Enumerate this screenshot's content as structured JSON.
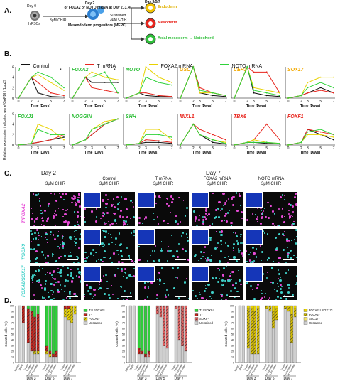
{
  "panels": {
    "A": "A.",
    "B": "B.",
    "C": "C.",
    "D": "D."
  },
  "schematic": {
    "day0": "Day 0",
    "hipsc": "hiPSCs",
    "day2": "Day 2",
    "day2_treatment": "T or FOXA2 or NOTO mRNA at Day 2, 3, 4",
    "chir": "3μM CHIR",
    "mepc": "Mesendoderm progenitors (MEPC)",
    "sustained": "Sustained",
    "sustained_chir": "3μM CHIR",
    "day357": "Day 3/5/7",
    "fates": [
      {
        "label": "Endoderm",
        "color": "#f2c300"
      },
      {
        "label": "Mesoderm",
        "color": "#e8261e"
      },
      {
        "label": "Axial mesoderm → Notochord",
        "color": "#2fbf3a"
      }
    ]
  },
  "legend": {
    "items": [
      {
        "label": "Control",
        "color": "#111111"
      },
      {
        "label": "T mRNA",
        "color": "#e8261e"
      },
      {
        "label": "FOXA2 mRNA",
        "color": "#e8d200"
      },
      {
        "label": "NOTO mRNA",
        "color": "#2fd23a"
      }
    ]
  },
  "chart_data": {
    "type": "line",
    "ylabel": "Relative expression indicated gene/GAPDH (Log2)",
    "xlabel": "Time (Days)",
    "x": [
      0,
      2,
      3,
      5,
      7
    ],
    "xticks": [
      "0",
      "2",
      "3",
      "5",
      "7"
    ],
    "ylim": [
      0,
      6
    ],
    "yticks": [
      "0",
      "2",
      "4",
      "6"
    ],
    "series_names": [
      "Control",
      "T mRNA",
      "FOXA2 mRNA",
      "NOTO mRNA"
    ],
    "genes": [
      {
        "name": "T",
        "color": "#2fbf3a",
        "star": "*",
        "values": [
          [
            0,
            4,
            1,
            0.3,
            0.2
          ],
          [
            0,
            4,
            3,
            1,
            0.5
          ],
          [
            0,
            4,
            4.5,
            3,
            1.5
          ],
          [
            0,
            4,
            5,
            4,
            2
          ]
        ]
      },
      {
        "name": "FOXA2",
        "color": "#2fbf3a",
        "star": "*",
        "values": [
          [
            0,
            4,
            3,
            3,
            3
          ],
          [
            0,
            4,
            2,
            1.5,
            1
          ],
          [
            0,
            4,
            5,
            4,
            3.5
          ],
          [
            0,
            4,
            4,
            5,
            1
          ]
        ]
      },
      {
        "name": "NOTO",
        "color": "#2fbf3a",
        "star": "*",
        "values": [
          [
            0,
            1,
            0.5,
            0.3,
            0.3
          ],
          [
            0,
            1,
            1,
            0.5,
            0.3
          ],
          [
            0,
            1,
            6,
            4,
            3
          ],
          [
            0,
            1,
            4,
            3,
            2.5
          ]
        ]
      },
      {
        "name": "GSC",
        "color": "#f2a900",
        "star": "",
        "values": [
          [
            0,
            6,
            1,
            0.5,
            0.3
          ],
          [
            0,
            6,
            2,
            1,
            0.5
          ],
          [
            0,
            6,
            1,
            1,
            0.5
          ],
          [
            0,
            6,
            1.5,
            1,
            0.5
          ]
        ]
      },
      {
        "name": "CER1",
        "color": "#f2a900",
        "star": "",
        "values": [
          [
            0,
            6,
            1,
            0.5,
            0.3
          ],
          [
            0,
            6,
            5,
            5,
            1
          ],
          [
            0,
            6,
            2,
            1.5,
            1
          ],
          [
            0,
            6,
            1.5,
            1,
            0.5
          ]
        ]
      },
      {
        "name": "SOX17",
        "color": "#f2a900",
        "star": "",
        "values": [
          [
            0,
            0.5,
            1,
            2,
            1
          ],
          [
            0,
            0.5,
            1,
            1.5,
            1
          ],
          [
            0,
            0.5,
            3,
            4,
            4
          ],
          [
            0,
            0.5,
            2,
            3,
            2
          ]
        ]
      },
      {
        "name": "FOXJ1",
        "color": "#2fbf3a",
        "star": "",
        "values": [
          [
            0,
            0.3,
            0.5,
            1,
            1.5
          ],
          [
            0,
            0.3,
            0.5,
            1,
            2
          ],
          [
            0,
            0.3,
            4,
            3,
            1
          ],
          [
            0,
            0.3,
            3,
            2,
            2
          ]
        ]
      },
      {
        "name": "NOGGIN",
        "color": "#2fbf3a",
        "star": "",
        "values": [
          [
            0,
            1,
            2,
            4,
            5
          ],
          [
            0,
            1,
            2,
            4,
            5
          ],
          [
            0,
            1,
            3,
            4.5,
            5
          ],
          [
            0,
            1,
            3,
            4,
            5
          ]
        ]
      },
      {
        "name": "SHH",
        "color": "#2fbf3a",
        "star": "",
        "values": [
          [
            0,
            0.3,
            0.5,
            0.5,
            0.3
          ],
          [
            0,
            0.3,
            1,
            0.8,
            0.5
          ],
          [
            0,
            0.3,
            3,
            3,
            1
          ],
          [
            0,
            0.3,
            2,
            2,
            1.5
          ]
        ]
      },
      {
        "name": "MIXL1",
        "color": "#e8261e",
        "star": "",
        "values": [
          [
            0,
            4,
            2,
            0.5,
            0.2
          ],
          [
            0,
            4,
            3,
            2,
            1
          ],
          [
            0,
            4,
            2,
            1,
            0.5
          ],
          [
            0,
            4,
            2,
            1,
            0.3
          ]
        ]
      },
      {
        "name": "TBX6",
        "color": "#e8261e",
        "star": "",
        "values": [
          [
            0,
            0.5,
            0.5,
            0.3,
            0.2
          ],
          [
            0,
            0.5,
            1,
            4,
            1
          ],
          [
            0,
            0.5,
            1,
            0.5,
            0.3
          ],
          [
            0,
            0.5,
            0.5,
            0.5,
            0.3
          ]
        ]
      },
      {
        "name": "FOXF1",
        "color": "#e8261e",
        "star": "",
        "values": [
          [
            0,
            0.5,
            3,
            2,
            1
          ],
          [
            0,
            0.5,
            3,
            2.5,
            2
          ],
          [
            0,
            0.5,
            2,
            2,
            1.5
          ],
          [
            0,
            0.5,
            2.5,
            3,
            2
          ]
        ]
      }
    ]
  },
  "microscopy": {
    "day2_header": "Day 2",
    "day7_header": "Day 7",
    "columns": [
      {
        "title": "",
        "sub": "3μM CHIR"
      },
      {
        "title": "Control",
        "sub": "3μM CHIR"
      },
      {
        "title": "T mRNA",
        "sub": "3μM CHIR"
      },
      {
        "title": "FOXA2 mRNA",
        "sub": "3μM CHIR"
      },
      {
        "title": "NOTO mRNA",
        "sub": "3μM CHIR"
      }
    ],
    "rows": [
      {
        "label": "T/FOXA2",
        "colors": [
          "#e64ad6",
          "#3fd0c8"
        ]
      },
      {
        "label": "T/SOX9",
        "colors": [
          "#3fd0c8",
          "#e64ad6"
        ]
      },
      {
        "label": "FOXA2/SOX17",
        "colors": [
          "#3fd0c8",
          "#e64ad6"
        ]
      }
    ]
  },
  "bar_charts": {
    "ylabel": "Counted cells (%)",
    "yticks": [
      "0",
      "10",
      "20",
      "30",
      "40",
      "50",
      "60",
      "70",
      "80",
      "90",
      "100"
    ],
    "cats": [
      "hiPSCs",
      "MEPC",
      "Control",
      "T mRNA",
      "FOXA2 mRNA",
      "NOTO mRNA"
    ],
    "day_labels": [
      "Day 3",
      "Day 5",
      "Day 7"
    ],
    "charts": [
      {
        "legend": [
          {
            "label": "T⁺/ FOXA2⁺",
            "color": "#2fcf3a",
            "pattern": "solid"
          },
          {
            "label": "T⁺",
            "color": "#c6231c",
            "pattern": "hatch"
          },
          {
            "label": "FOXA2⁺",
            "color": "#e8d200",
            "pattern": "hatch"
          },
          {
            "label": "Unstained",
            "color": "#cfcfcf",
            "pattern": "solid"
          }
        ],
        "bars": [
          [
            0,
            0,
            0,
            100
          ],
          [
            0,
            30,
            0,
            70
          ],
          [
            5,
            60,
            0,
            35
          ],
          [
            10,
            70,
            0,
            20
          ],
          [
            20,
            60,
            5,
            15
          ],
          [
            15,
            65,
            5,
            15
          ],
          [
            70,
            10,
            5,
            15
          ],
          [
            80,
            5,
            5,
            10
          ],
          [
            85,
            5,
            0,
            10
          ],
          [
            80,
            10,
            0,
            10
          ],
          [
            0,
            5,
            15,
            80
          ],
          [
            0,
            5,
            20,
            75
          ],
          [
            0,
            0,
            30,
            70
          ],
          [
            0,
            0,
            15,
            85
          ],
          [
            0,
            0,
            5,
            95
          ],
          [
            0,
            0,
            10,
            90
          ],
          [
            0,
            0,
            10,
            90
          ],
          [
            0,
            0,
            5,
            95
          ]
        ]
      },
      {
        "legend": [
          {
            "label": "T⁺/ SOX9⁺",
            "color": "#2fcf3a",
            "pattern": "solid"
          },
          {
            "label": "T⁺",
            "color": "#c6231c",
            "pattern": "hatch"
          },
          {
            "label": "SOX9⁺",
            "color": "#e06060",
            "pattern": "hatch"
          },
          {
            "label": "Unstained",
            "color": "#cfcfcf",
            "pattern": "solid"
          }
        ],
        "bars": [
          [
            0,
            0,
            0,
            100
          ],
          [
            0,
            0,
            0,
            100
          ],
          [
            75,
            10,
            0,
            15
          ],
          [
            80,
            5,
            0,
            15
          ],
          [
            85,
            5,
            0,
            10
          ],
          [
            80,
            5,
            5,
            10
          ],
          [
            0,
            0,
            15,
            85
          ],
          [
            0,
            0,
            20,
            80
          ],
          [
            0,
            0,
            70,
            30
          ],
          [
            0,
            0,
            75,
            25
          ],
          [
            0,
            0,
            5,
            95
          ],
          [
            0,
            0,
            60,
            40
          ],
          [
            0,
            0,
            70,
            30
          ],
          [
            0,
            0,
            80,
            20
          ],
          [
            0,
            0,
            5,
            95
          ],
          [
            0,
            0,
            10,
            90
          ],
          [
            0,
            0,
            30,
            70
          ],
          [
            0,
            0,
            20,
            80
          ]
        ]
      },
      {
        "legend": [
          {
            "label": "FOXA2⁺/ SOX17⁺",
            "color": "#e8d200",
            "pattern": "solid"
          },
          {
            "label": "FOXA2⁺",
            "color": "#d8c000",
            "pattern": "hatch"
          },
          {
            "label": "SOX17⁺",
            "color": "#f4e46a",
            "pattern": "solid"
          },
          {
            "label": "Unstained",
            "color": "#cfcfcf",
            "pattern": "solid"
          }
        ],
        "bars": [
          [
            0,
            0,
            0,
            100
          ],
          [
            0,
            0,
            0,
            100
          ],
          [
            5,
            70,
            0,
            25
          ],
          [
            5,
            80,
            0,
            15
          ],
          [
            10,
            75,
            0,
            15
          ],
          [
            5,
            80,
            0,
            15
          ],
          [
            0,
            5,
            0,
            95
          ],
          [
            0,
            10,
            0,
            90
          ],
          [
            10,
            30,
            0,
            60
          ],
          [
            5,
            20,
            0,
            75
          ],
          [
            0,
            5,
            0,
            95
          ],
          [
            0,
            10,
            0,
            90
          ],
          [
            15,
            50,
            0,
            35
          ],
          [
            5,
            15,
            0,
            80
          ],
          [
            0,
            0,
            0,
            100
          ],
          [
            0,
            5,
            0,
            95
          ],
          [
            10,
            10,
            0,
            80
          ],
          [
            5,
            10,
            0,
            85
          ]
        ]
      }
    ]
  }
}
